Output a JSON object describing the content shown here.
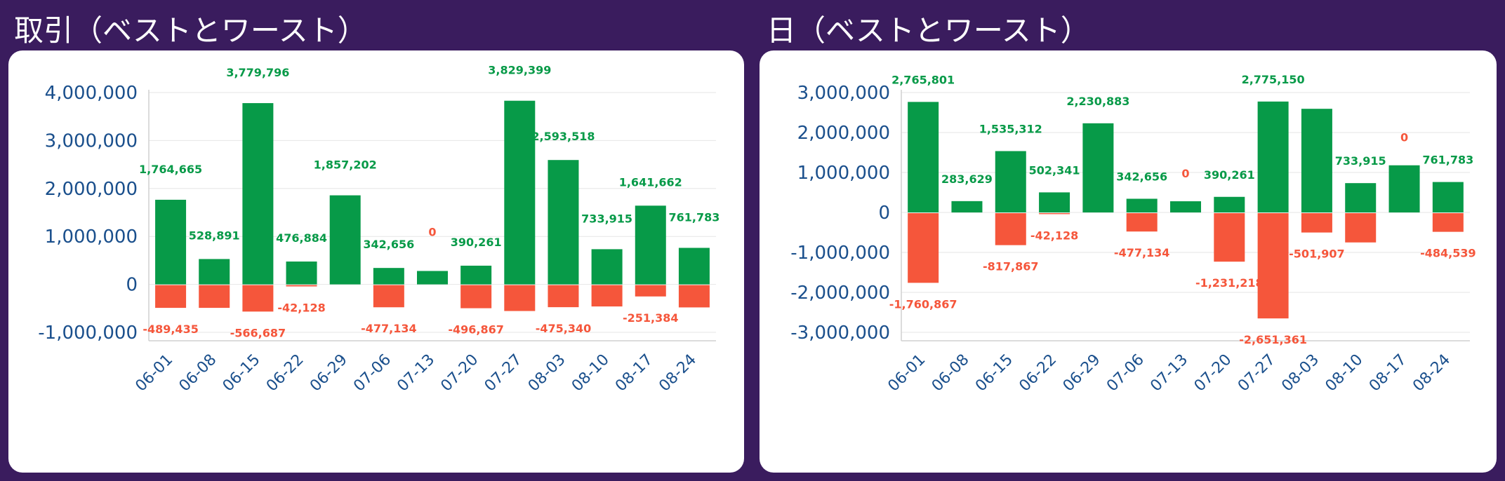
{
  "charts": [
    {
      "title": "取引（ベストとワースト）"
    },
    {
      "title": "日（ベストとワースト）"
    }
  ],
  "colors": {
    "positive": "#079a48",
    "negative": "#f5563b",
    "tick": "#1a4f8c",
    "grid": "#e6e6e6"
  },
  "chart_data": [
    {
      "type": "bar",
      "title": "取引（ベストとワースト）",
      "categories": [
        "06-01",
        "06-08",
        "06-15",
        "06-22",
        "06-29",
        "07-06",
        "07-13",
        "07-20",
        "07-27",
        "08-03",
        "08-10",
        "08-17",
        "08-24"
      ],
      "series": [
        {
          "values": [
            1764665,
            528891,
            3779796,
            476884,
            1857202,
            342656,
            0,
            390261,
            3829399,
            2593518,
            733915,
            1641662,
            761783
          ],
          "bar_values": [
            1764665,
            528891,
            3779796,
            476884,
            1857202,
            342656,
            280000,
            390261,
            3829399,
            2593518,
            733915,
            1641662,
            761783
          ]
        },
        {
          "values": [
            -489435,
            -489435,
            -566687,
            -42128,
            null,
            -477134,
            null,
            -496867,
            -555000,
            -475340,
            -460000,
            -251384,
            -480000
          ],
          "labels": [
            "-489,435",
            "",
            "-566,687",
            "-42,128",
            "",
            "-477,134",
            "",
            "-496,867",
            "",
            "-475,340",
            "",
            "-251,384",
            ""
          ]
        }
      ],
      "ylim": [
        -1000000,
        4000000
      ],
      "yticks": [
        4000000,
        3000000,
        2000000,
        1000000,
        0,
        -1000000
      ],
      "ytick_labels": [
        "4,000,000",
        "3,000,000",
        "2,000,000",
        "1,000,000",
        "0",
        "-1,000,000"
      ],
      "grid": true
    },
    {
      "type": "bar",
      "title": "日（ベストとワースト）",
      "categories": [
        "06-01",
        "06-08",
        "06-15",
        "06-22",
        "06-29",
        "07-06",
        "07-13",
        "07-20",
        "07-27",
        "08-03",
        "08-10",
        "08-17",
        "08-24"
      ],
      "series": [
        {
          "values": [
            2765801,
            283629,
            1535312,
            502341,
            2230883,
            342656,
            0,
            390261,
            2775150,
            2593518,
            733915,
            0,
            761783
          ],
          "bar_values": [
            2765801,
            283629,
            1535312,
            502341,
            2230883,
            342656,
            280000,
            390261,
            2775150,
            2593518,
            733915,
            1180000,
            761783
          ],
          "labels": [
            "2,765,801",
            "283,629",
            "1,535,312",
            "502,341",
            "2,230,883",
            "342,656",
            "0",
            "390,261",
            "2,775,150",
            "",
            "733,915",
            "0",
            "761,783"
          ]
        },
        {
          "values": [
            -1760867,
            null,
            -817867,
            -42128,
            null,
            -477134,
            null,
            -1231218,
            -2651361,
            -501907,
            -750000,
            null,
            -484539
          ],
          "labels": [
            "-1,760,867",
            "",
            "-817,867",
            "-42,128",
            "",
            "-477,134",
            "",
            "-1,231,218",
            "-2,651,361",
            "-501,907",
            "",
            "",
            "-484,539"
          ]
        }
      ],
      "ylim": [
        -3000000,
        3000000
      ],
      "yticks": [
        3000000,
        2000000,
        1000000,
        0,
        -1000000,
        -2000000,
        -3000000
      ],
      "ytick_labels": [
        "3,000,000",
        "2,000,000",
        "1,000,000",
        "0",
        "-1,000,000",
        "-2,000,000",
        "-3,000,000"
      ],
      "grid": true
    }
  ]
}
